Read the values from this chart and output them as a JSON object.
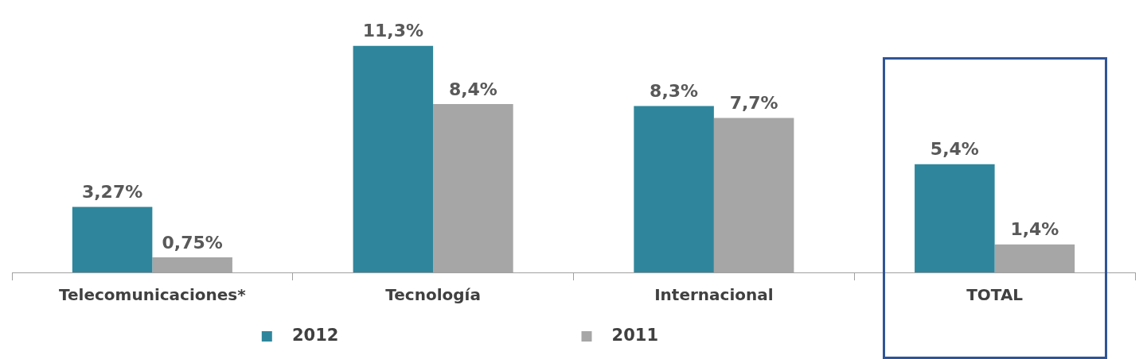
{
  "chart_data": {
    "type": "bar",
    "categories": [
      "Telecomunicaciones*",
      "Tecnología",
      "Internacional",
      "TOTAL"
    ],
    "series": [
      {
        "name": "2012",
        "color": "#2f869c",
        "values": [
          3.27,
          11.3,
          8.3,
          5.4
        ],
        "value_labels": [
          "3,27%",
          "11,3%",
          "8,3%",
          "5,4%"
        ]
      },
      {
        "name": "2011",
        "color": "#a6a6a6",
        "values": [
          0.75,
          8.4,
          7.7,
          1.4
        ],
        "value_labels": [
          "0,75%",
          "8,4%",
          "7,7%",
          "1,4%"
        ]
      }
    ],
    "legend": "bottom"
  }
}
